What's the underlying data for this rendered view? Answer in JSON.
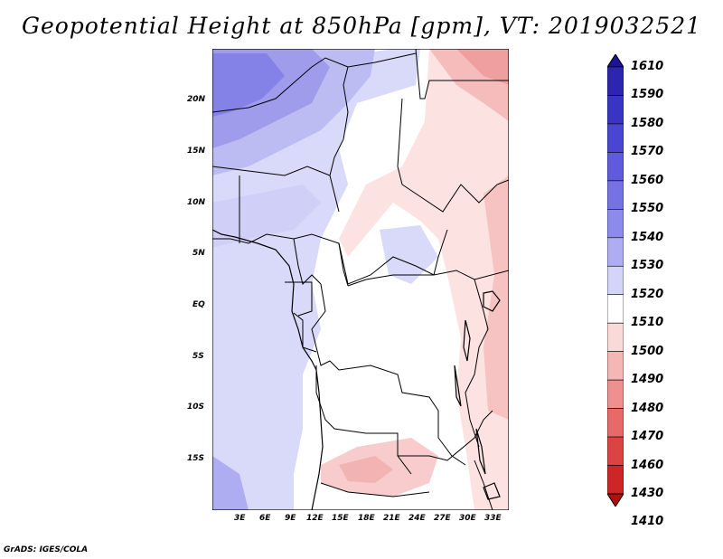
{
  "title": "Geopotential Height at 850hPa [gpm], VT: 2019032521",
  "credit": "GrADS: IGES/COLA",
  "map": {
    "lat_labels": [
      "20N",
      "15N",
      "10N",
      "5N",
      "EQ",
      "5S",
      "10S",
      "15S"
    ],
    "lon_labels": [
      "3E",
      "6E",
      "9E",
      "12E",
      "15E",
      "18E",
      "21E",
      "24E",
      "27E",
      "30E",
      "33E"
    ]
  },
  "colorbar": {
    "levels": [
      "1610",
      "1590",
      "1580",
      "1570",
      "1560",
      "1550",
      "1540",
      "1530",
      "1520",
      "1510",
      "1500",
      "1490",
      "1480",
      "1470",
      "1460",
      "1430",
      "1410"
    ],
    "colors": [
      "#1a1496",
      "#2b25b0",
      "#3a34c4",
      "#4b46d2",
      "#5f5bdc",
      "#7572e4",
      "#8c8aeb",
      "#aeadf2",
      "#d4d4f9",
      "#ffffff",
      "#fad9d9",
      "#f5b6b6",
      "#ee9090",
      "#e76a6a",
      "#dc4444",
      "#cc2626",
      "#b01010"
    ]
  }
}
